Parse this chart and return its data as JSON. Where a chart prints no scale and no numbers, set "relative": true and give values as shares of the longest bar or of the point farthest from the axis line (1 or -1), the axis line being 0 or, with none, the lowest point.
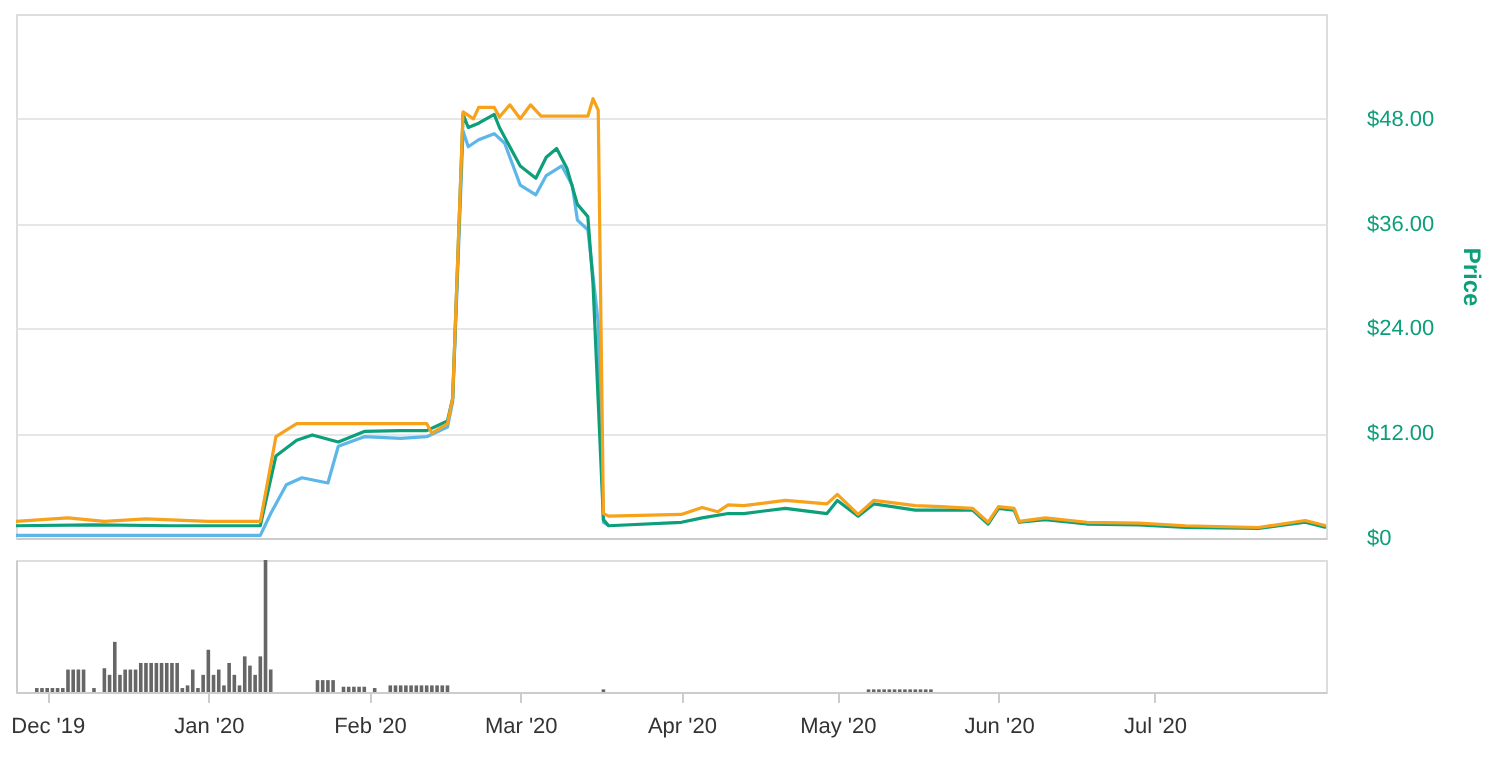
{
  "chart_data": [
    {
      "type": "line",
      "ylabel": "Price",
      "xlim": [
        "2019-11-25",
        "2020-08-03"
      ],
      "ylim": [
        0,
        60
      ],
      "yticks": [
        {
          "value": 0,
          "label": "$0"
        },
        {
          "value": 12,
          "label": "$12.00"
        },
        {
          "value": 24,
          "label": "$24.00"
        },
        {
          "value": 36,
          "label": "$36.00"
        },
        {
          "value": 48,
          "label": "$48.00"
        }
      ],
      "xticks": [
        {
          "value": "2019-12-01",
          "label": null
        },
        {
          "value": "2020-01-01",
          "label": null
        },
        {
          "value": "2020-02-01",
          "label": null
        },
        {
          "value": "2020-03-01",
          "label": null
        },
        {
          "value": "2020-04-01",
          "label": null
        },
        {
          "value": "2020-05-01",
          "label": null
        },
        {
          "value": "2020-06-01",
          "label": null
        },
        {
          "value": "2020-07-01",
          "label": null
        }
      ],
      "tick_labels": "y",
      "grid": "y",
      "line_style": "solid",
      "marker": "none",
      "series": [
        {
          "color": "#5db6e8",
          "x": [
            "2019-11-25",
            "2019-12-20",
            "2020-01-11",
            "2020-01-13",
            "2020-01-16",
            "2020-01-19",
            "2020-01-24",
            "2020-01-26",
            "2020-01-31",
            "2020-02-07",
            "2020-02-12",
            "2020-02-16",
            "2020-02-17",
            "2020-02-19",
            "2020-02-20",
            "2020-02-22",
            "2020-02-25",
            "2020-02-27",
            "2020-03-01",
            "2020-03-04",
            "2020-03-06",
            "2020-03-09",
            "2020-03-11",
            "2020-03-12",
            "2020-03-14",
            "2020-03-16",
            "2020-03-17",
            "2020-03-18"
          ],
          "values": [
            0.3,
            0.3,
            0.3,
            2.8,
            6.1,
            6.9,
            6.3,
            10.5,
            11.6,
            11.4,
            11.6,
            12.7,
            15.6,
            46.6,
            44.8,
            45.6,
            46.3,
            45.2,
            40.4,
            39.3,
            41.5,
            42.6,
            40.4,
            36.4,
            35.3,
            24.7,
            1.8,
            1.4
          ]
        },
        {
          "color": "#0c9f7a",
          "x": [
            "2019-11-25",
            "2019-12-10",
            "2019-12-25",
            "2020-01-11",
            "2020-01-14",
            "2020-01-18",
            "2020-01-21",
            "2020-01-26",
            "2020-01-31",
            "2020-02-07",
            "2020-02-12",
            "2020-02-16",
            "2020-02-17",
            "2020-02-19",
            "2020-02-20",
            "2020-02-22",
            "2020-02-25",
            "2020-02-26",
            "2020-03-01",
            "2020-03-04",
            "2020-03-06",
            "2020-03-08",
            "2020-03-10",
            "2020-03-12",
            "2020-03-14",
            "2020-03-15",
            "2020-03-17",
            "2020-03-18",
            "2020-04-01",
            "2020-04-05",
            "2020-04-10",
            "2020-04-13",
            "2020-04-21",
            "2020-04-29",
            "2020-05-01",
            "2020-05-05",
            "2020-05-08",
            "2020-05-16",
            "2020-05-21",
            "2020-05-27",
            "2020-05-30",
            "2020-06-01",
            "2020-06-04",
            "2020-06-05",
            "2020-06-10",
            "2020-06-18",
            "2020-06-28",
            "2020-07-07",
            "2020-07-21",
            "2020-07-30",
            "2020-08-03"
          ],
          "values": [
            1.4,
            1.5,
            1.4,
            1.4,
            9.4,
            11.2,
            11.8,
            11.0,
            12.2,
            12.3,
            12.3,
            13.4,
            16.0,
            48.5,
            47.0,
            47.5,
            48.5,
            47.0,
            42.6,
            41.2,
            43.6,
            44.6,
            42.3,
            38.2,
            36.8,
            29.1,
            2.1,
            1.4,
            1.8,
            2.3,
            2.8,
            2.8,
            3.4,
            2.8,
            4.3,
            2.5,
            3.9,
            3.2,
            3.2,
            3.2,
            1.6,
            3.4,
            3.2,
            1.8,
            2.1,
            1.6,
            1.5,
            1.2,
            1.1,
            1.8,
            1.2
          ]
        },
        {
          "color": "#f7a21b",
          "x": [
            "2019-11-25",
            "2019-12-05",
            "2019-12-12",
            "2019-12-20",
            "2020-01-01",
            "2020-01-11",
            "2020-01-14",
            "2020-01-18",
            "2020-02-12",
            "2020-02-13",
            "2020-02-16",
            "2020-02-17",
            "2020-02-19",
            "2020-02-21",
            "2020-02-22",
            "2020-02-25",
            "2020-02-26",
            "2020-02-28",
            "2020-03-01",
            "2020-03-03",
            "2020-03-05",
            "2020-03-10",
            "2020-03-14",
            "2020-03-15",
            "2020-03-16",
            "2020-03-17",
            "2020-03-18",
            "2020-04-01",
            "2020-04-05",
            "2020-04-08",
            "2020-04-10",
            "2020-04-13",
            "2020-04-21",
            "2020-04-29",
            "2020-05-01",
            "2020-05-05",
            "2020-05-08",
            "2020-05-16",
            "2020-05-21",
            "2020-05-27",
            "2020-05-30",
            "2020-06-01",
            "2020-06-04",
            "2020-06-05",
            "2020-06-10",
            "2020-06-18",
            "2020-06-28",
            "2020-07-07",
            "2020-07-21",
            "2020-07-30",
            "2020-08-03"
          ],
          "values": [
            1.9,
            2.3,
            1.9,
            2.2,
            1.9,
            1.9,
            11.6,
            13.1,
            13.1,
            12.0,
            13.1,
            16.0,
            48.8,
            48.0,
            49.3,
            49.3,
            48.2,
            49.6,
            48.0,
            49.6,
            48.3,
            48.3,
            48.3,
            50.3,
            49.0,
            2.8,
            2.5,
            2.7,
            3.5,
            3.0,
            3.8,
            3.7,
            4.3,
            3.9,
            5.0,
            2.7,
            4.3,
            3.7,
            3.6,
            3.4,
            1.8,
            3.6,
            3.4,
            1.9,
            2.3,
            1.8,
            1.7,
            1.4,
            1.2,
            2.0,
            1.4
          ]
        }
      ]
    },
    {
      "type": "bar",
      "relative": true,
      "tick_labels": "x",
      "xlim": [
        "2019-11-25",
        "2020-08-03"
      ],
      "xticks": [
        {
          "value": "2019-12-01",
          "label": "Dec '19"
        },
        {
          "value": "2020-01-01",
          "label": "Jan '20"
        },
        {
          "value": "2020-02-01",
          "label": "Feb '20"
        },
        {
          "value": "2020-03-01",
          "label": "Mar '20"
        },
        {
          "value": "2020-04-01",
          "label": "Apr '20"
        },
        {
          "value": "2020-05-01",
          "label": "May '20"
        },
        {
          "value": "2020-06-01",
          "label": "Jun '20"
        },
        {
          "value": "2020-07-01",
          "label": "Jul '20"
        }
      ],
      "series": [
        {
          "color": "#666666",
          "x": [
            "2019-11-29",
            "2019-11-30",
            "2019-12-01",
            "2019-12-02",
            "2019-12-03",
            "2019-12-04",
            "2019-12-05",
            "2019-12-06",
            "2019-12-07",
            "2019-12-08",
            "2019-12-10",
            "2019-12-12",
            "2019-12-13",
            "2019-12-14",
            "2019-12-15",
            "2019-12-16",
            "2019-12-17",
            "2019-12-18",
            "2019-12-19",
            "2019-12-20",
            "2019-12-21",
            "2019-12-22",
            "2019-12-23",
            "2019-12-24",
            "2019-12-25",
            "2019-12-26",
            "2019-12-27",
            "2019-12-28",
            "2019-12-29",
            "2019-12-30",
            "2019-12-31",
            "2020-01-01",
            "2020-01-02",
            "2020-01-03",
            "2020-01-04",
            "2020-01-05",
            "2020-01-06",
            "2020-01-07",
            "2020-01-08",
            "2020-01-09",
            "2020-01-10",
            "2020-01-11",
            "2020-01-12",
            "2020-01-13",
            "2020-01-22",
            "2020-01-23",
            "2020-01-24",
            "2020-01-25",
            "2020-01-27",
            "2020-01-28",
            "2020-01-29",
            "2020-01-30",
            "2020-01-31",
            "2020-02-02",
            "2020-02-05",
            "2020-02-06",
            "2020-02-07",
            "2020-02-08",
            "2020-02-09",
            "2020-02-10",
            "2020-02-11",
            "2020-02-12",
            "2020-02-13",
            "2020-02-14",
            "2020-02-15",
            "2020-02-16",
            "2020-03-17",
            "2020-05-07",
            "2020-05-08",
            "2020-05-09",
            "2020-05-10",
            "2020-05-11",
            "2020-05-12",
            "2020-05-13",
            "2020-05-14",
            "2020-05-15",
            "2020-05-16",
            "2020-05-17",
            "2020-05-18",
            "2020-05-19"
          ],
          "values": [
            0.03,
            0.03,
            0.03,
            0.03,
            0.03,
            0.03,
            0.17,
            0.17,
            0.17,
            0.17,
            0.03,
            0.18,
            0.13,
            0.38,
            0.13,
            0.17,
            0.17,
            0.17,
            0.22,
            0.22,
            0.22,
            0.22,
            0.22,
            0.22,
            0.22,
            0.22,
            0.03,
            0.05,
            0.17,
            0.03,
            0.13,
            0.32,
            0.13,
            0.17,
            0.05,
            0.22,
            0.13,
            0.05,
            0.27,
            0.2,
            0.13,
            0.27,
            1.0,
            0.17,
            0.09,
            0.09,
            0.09,
            0.09,
            0.04,
            0.04,
            0.04,
            0.04,
            0.04,
            0.03,
            0.05,
            0.05,
            0.05,
            0.05,
            0.05,
            0.05,
            0.05,
            0.05,
            0.05,
            0.05,
            0.05,
            0.05,
            0.02,
            0.02,
            0.02,
            0.02,
            0.02,
            0.02,
            0.02,
            0.02,
            0.02,
            0.02,
            0.02,
            0.02,
            0.02,
            0.02
          ]
        }
      ]
    }
  ]
}
